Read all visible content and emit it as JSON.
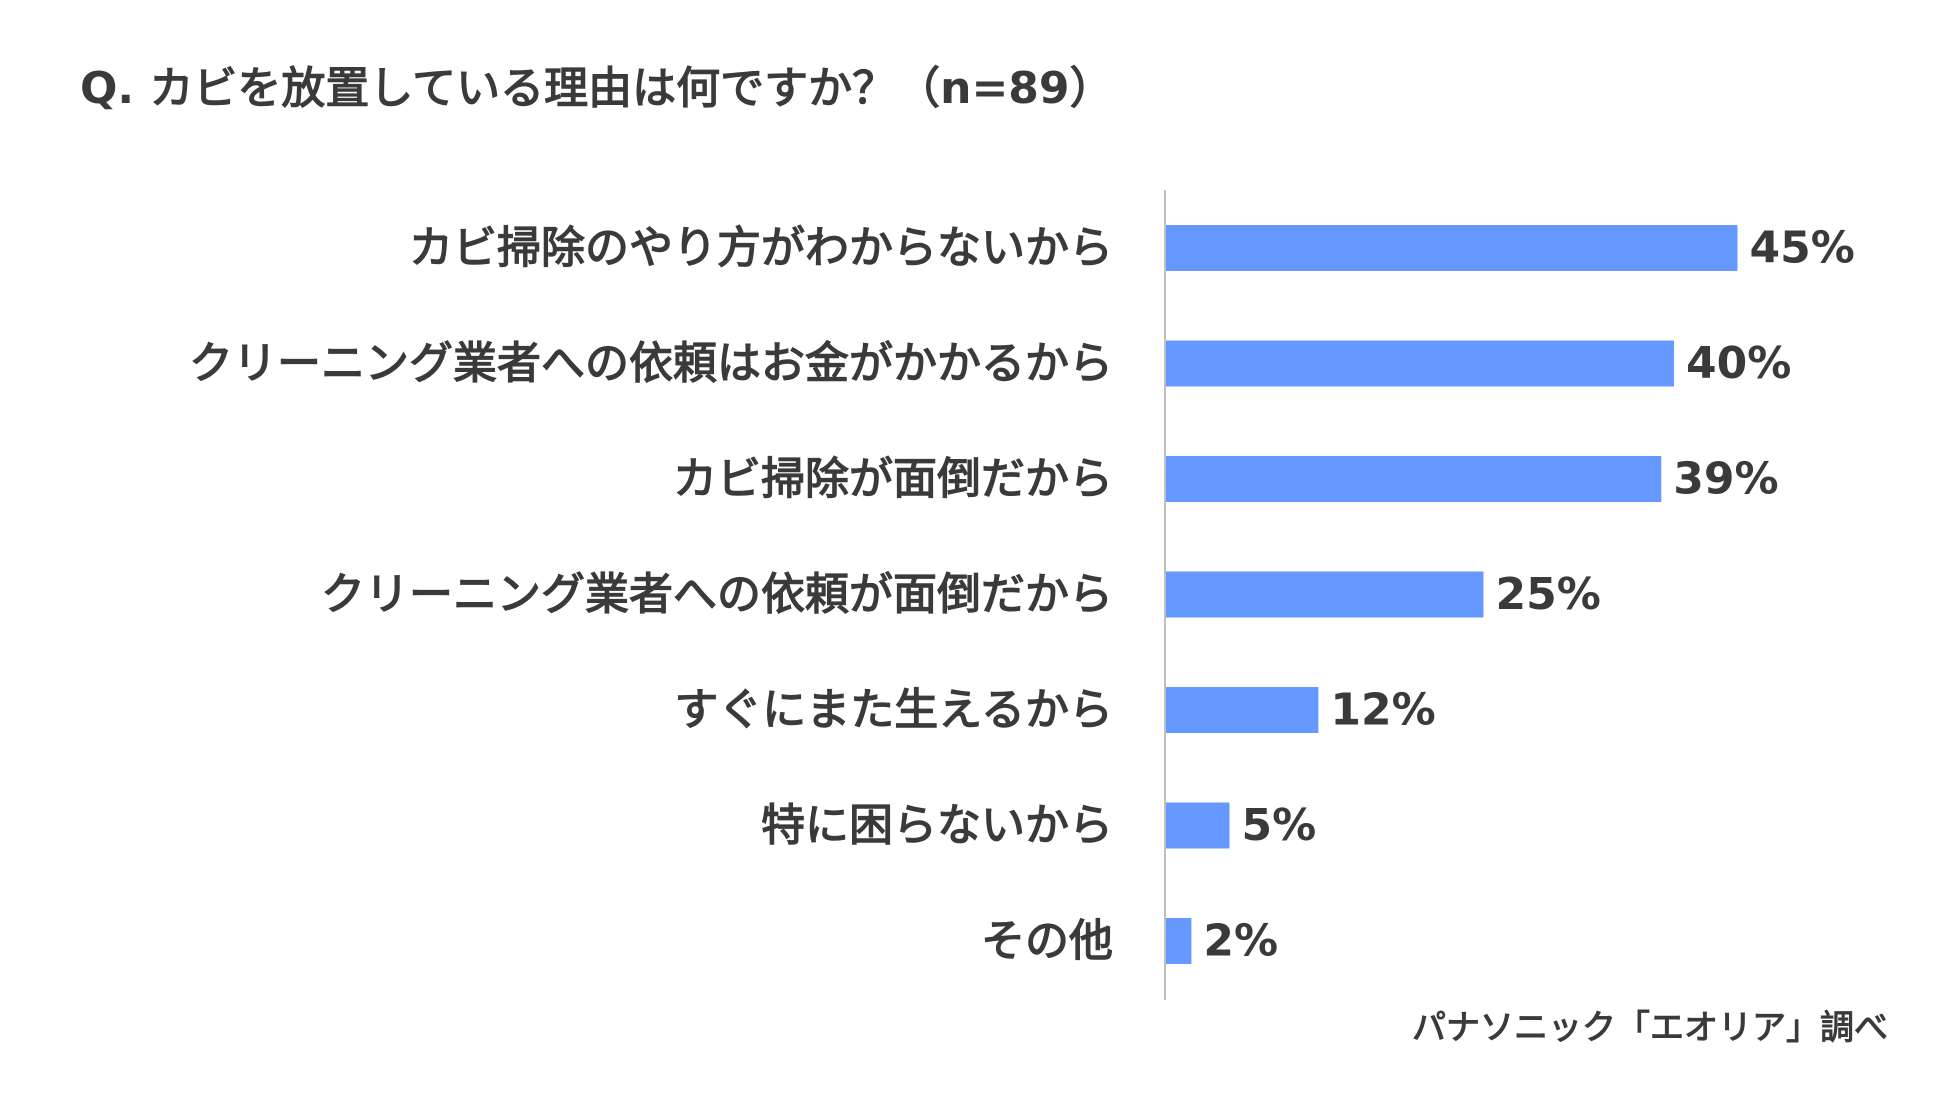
{
  "title": "Q. カビを放置している理由は何ですか？（n=89）",
  "source": "パナソニック「エオリア」調べ",
  "colors": {
    "bar": "#6699FF",
    "text": "#3A3A3A",
    "axis": "#BFBFBF"
  },
  "chart_data": {
    "type": "bar",
    "orientation": "horizontal",
    "title": "Q. カビを放置している理由は何ですか？（n=89）",
    "categories": [
      "カビ掃除のやり方がわからないから",
      "クリーニング業者への依頼はお金がかかるから",
      "カビ掃除が面倒だから",
      "クリーニング業者への依頼が面倒だから",
      "すぐにまた生えるから",
      "特に困らないから",
      "その他"
    ],
    "values": [
      45,
      40,
      39,
      25,
      12,
      5,
      2
    ],
    "value_labels": [
      "45%",
      "40%",
      "39%",
      "25%",
      "12%",
      "5%",
      "2%"
    ],
    "unit": "%",
    "xlim": [
      0,
      100
    ],
    "grid": false,
    "legend": "none"
  }
}
